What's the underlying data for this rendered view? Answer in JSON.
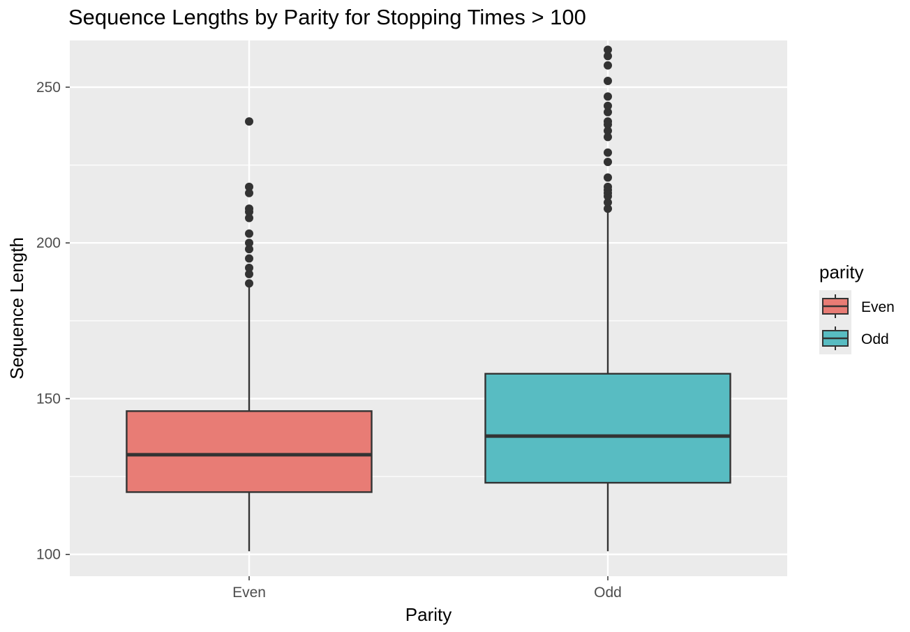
{
  "chart_data": {
    "type": "boxplot",
    "title": "Sequence Lengths by Parity for Stopping Times > 100",
    "xlabel": "Parity",
    "ylabel": "Sequence Length",
    "ylim": [
      93,
      265
    ],
    "y_ticks": [
      100,
      150,
      200,
      250
    ],
    "y_tick_labels": [
      "100",
      "150",
      "200",
      "250"
    ],
    "grid": true,
    "categories": [
      "Even",
      "Odd"
    ],
    "boxes": [
      {
        "category": "Even",
        "color": "#E87C75",
        "whisker_low": 101,
        "q1": 120,
        "median": 132,
        "q3": 146,
        "whisker_high": 186,
        "outliers": [
          187,
          190,
          192,
          195,
          198,
          200,
          203,
          208,
          210,
          211,
          216,
          218,
          239
        ]
      },
      {
        "category": "Odd",
        "color": "#58BCC2",
        "whisker_low": 101,
        "q1": 123,
        "median": 138,
        "q3": 158,
        "whisker_high": 210,
        "outliers": [
          211,
          213,
          215,
          216,
          217,
          218,
          221,
          226,
          229,
          234,
          236,
          238,
          239,
          242,
          244,
          247,
          252,
          257,
          260,
          262
        ]
      }
    ],
    "legend": {
      "title": "parity",
      "position": "right",
      "entries": [
        {
          "label": "Even",
          "color": "#E87C75"
        },
        {
          "label": "Odd",
          "color": "#58BCC2"
        }
      ]
    },
    "colors": {
      "panel_background": "#EBEBEB",
      "gridline": "#FFFFFF",
      "box_outline": "#333333",
      "outlier": "#333333"
    }
  }
}
